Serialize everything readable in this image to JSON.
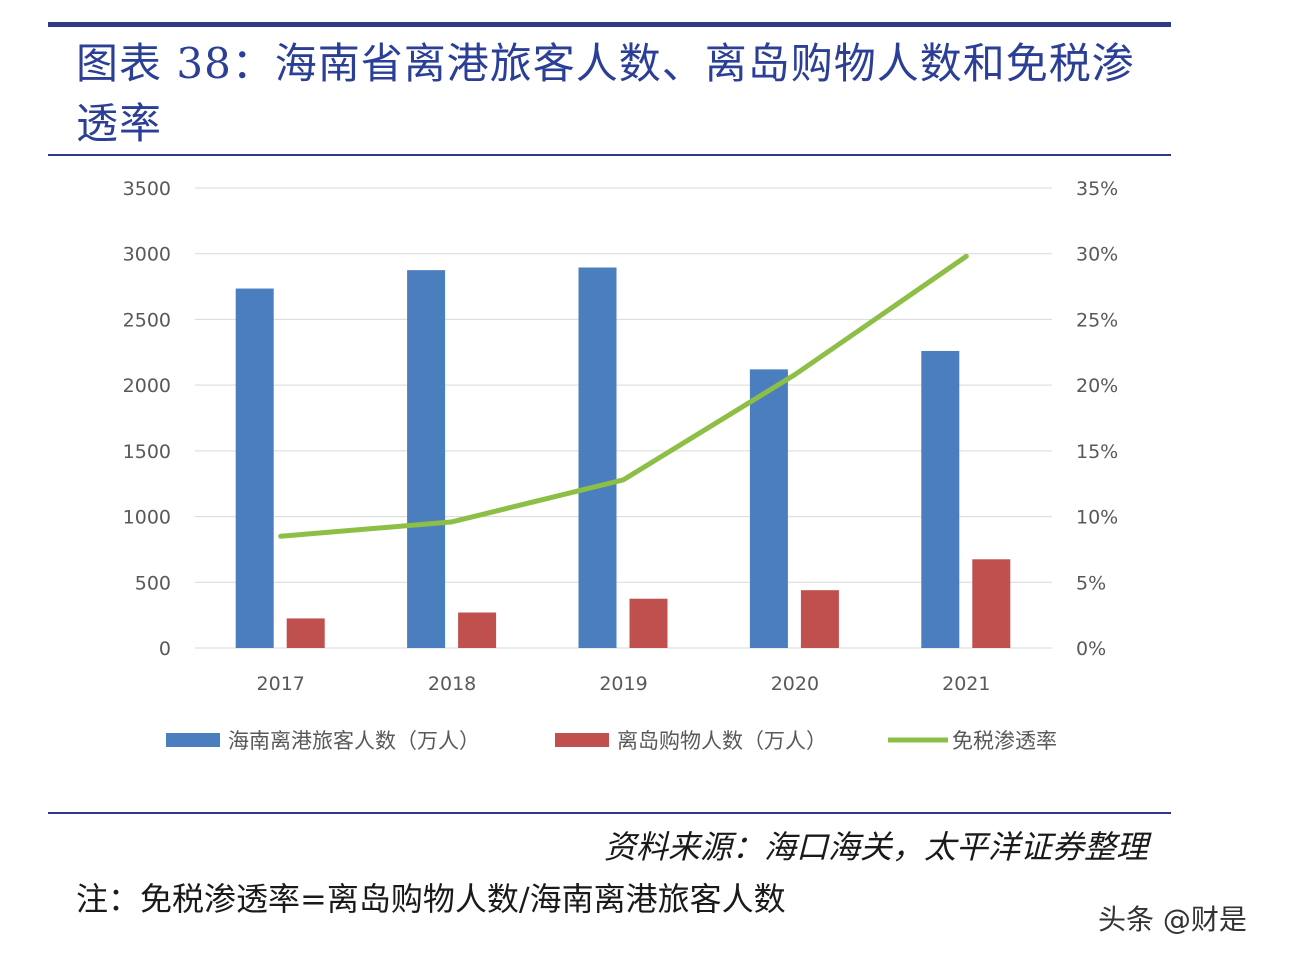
{
  "header": {
    "title": "图表 38：海南省离港旅客人数、离岛购物人数和免税渗透率"
  },
  "chart_data": {
    "type": "bar",
    "categories": [
      "2017",
      "2018",
      "2019",
      "2020",
      "2021"
    ],
    "series": [
      {
        "name": "海南离港旅客人数（万人）",
        "type": "bar",
        "axis": "left",
        "color": "#4a7ebf",
        "values": [
          2735,
          2875,
          2895,
          2120,
          2260
        ]
      },
      {
        "name": "离岛购物人数（万人）",
        "type": "bar",
        "axis": "left",
        "color": "#c0504d",
        "values": [
          225,
          270,
          375,
          440,
          675
        ]
      },
      {
        "name": "免税渗透率",
        "type": "line",
        "axis": "right",
        "color": "#8dbe45",
        "values": [
          0.085,
          0.096,
          0.128,
          0.208,
          0.298
        ]
      }
    ],
    "yleft": {
      "min": 0,
      "max": 3500,
      "ticks": [
        "0",
        "500",
        "1000",
        "1500",
        "2000",
        "2500",
        "3000",
        "3500"
      ]
    },
    "yright": {
      "min": 0,
      "max": 0.35,
      "ticks": [
        "0%",
        "5%",
        "10%",
        "15%",
        "20%",
        "25%",
        "30%",
        "35%"
      ]
    },
    "grid": true,
    "legend_position": "bottom"
  },
  "footer": {
    "source": "资料来源：海口海关，太平洋证券整理",
    "note": "注：免税渗透率=离岛购物人数/海南离港旅客人数"
  },
  "watermark": "头条 @财是"
}
